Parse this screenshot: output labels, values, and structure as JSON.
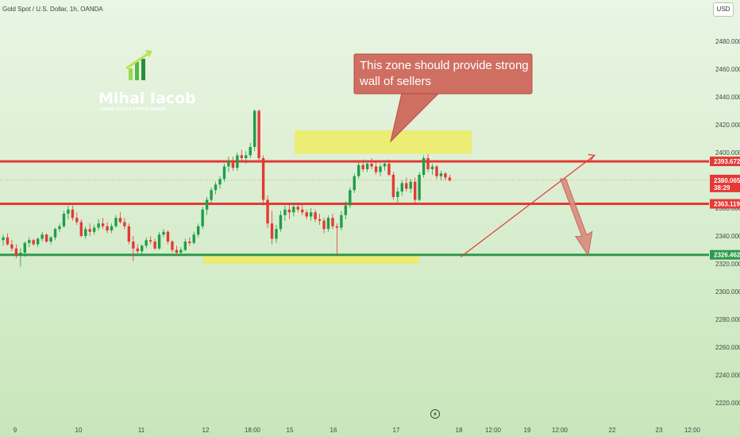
{
  "header": {
    "symbol": "Gold Spot / U.S. Dollar, 1h, OANDA",
    "currency_button": "USD"
  },
  "brand": {
    "name": "Mihai Iacob",
    "tagline": "FOREX, GOLD & CRYPTO TRADER"
  },
  "annotation": {
    "line1": "This zone should provide strong",
    "line2": "wall of sellers"
  },
  "colors": {
    "background_top": "#eaf5e4",
    "background_bottom": "#c8e6bb",
    "bull": "#1e9e4a",
    "bear": "#e53935",
    "resistance": "#e53935",
    "support": "#2e9a4c",
    "zone": "#ecec6a",
    "callout": "#cf6f62"
  },
  "chart_data": {
    "type": "candlestick",
    "title": "Gold Spot / U.S. Dollar, 1h, OANDA",
    "ylim": [
      2212,
      2502
    ],
    "y_ticks": [
      "2220.000",
      "2240.000",
      "2260.000",
      "2280.000",
      "2300.000",
      "2320.000",
      "2340.000",
      "2360.000",
      "2380.000",
      "2400.000",
      "2420.000",
      "2440.000",
      "2460.000",
      "2480.000"
    ],
    "x_ticks": [
      "9",
      "10",
      "11",
      "12",
      "18:00",
      "15",
      "16",
      "17",
      "18",
      "12:00",
      "19",
      "12:00",
      "22",
      "23",
      "12:00"
    ],
    "levels": [
      {
        "name": "resistance-upper",
        "price": 2393.672,
        "label": "2393.672",
        "color": "#e53935"
      },
      {
        "name": "resistance-lower",
        "price": 2363.119,
        "label": "2363.119",
        "color": "#e53935"
      },
      {
        "name": "support",
        "price": 2326.462,
        "label": "2326.462",
        "color": "#2e9a4c"
      }
    ],
    "last_price": {
      "price": 2380.065,
      "label": "2380.065",
      "countdown": "38:29"
    },
    "zones": [
      {
        "name": "sellers-zone",
        "from": "May 15 ~02:00",
        "to": "May 18 ~12:00",
        "low": 2399,
        "high": 2416
      },
      {
        "name": "buyers-zone",
        "from": "May 12 ~00:00",
        "to": "May 17 ~16:00",
        "low": 2320,
        "high": 2327
      }
    ],
    "trendline": {
      "from": [
        16,
        2325
      ],
      "to": [
        18.1,
        2398
      ]
    },
    "projection_arrow": {
      "from": [
        17.6,
        2381
      ],
      "to": [
        18.0,
        2326
      ]
    },
    "candles": [
      [
        2337,
        2341,
        2333,
        2339
      ],
      [
        2339,
        2342,
        2333,
        2334
      ],
      [
        2334,
        2337,
        2329,
        2331
      ],
      [
        2331,
        2334,
        2324,
        2326
      ],
      [
        2326,
        2331,
        2318,
        2328
      ],
      [
        2328,
        2336,
        2325,
        2335
      ],
      [
        2335,
        2339,
        2332,
        2337
      ],
      [
        2337,
        2338,
        2333,
        2334
      ],
      [
        2334,
        2339,
        2332,
        2338
      ],
      [
        2338,
        2343,
        2336,
        2341
      ],
      [
        2341,
        2342,
        2335,
        2336
      ],
      [
        2336,
        2340,
        2334,
        2339
      ],
      [
        2339,
        2346,
        2337,
        2345
      ],
      [
        2345,
        2349,
        2343,
        2347
      ],
      [
        2347,
        2358,
        2346,
        2356
      ],
      [
        2356,
        2362,
        2352,
        2359
      ],
      [
        2359,
        2362,
        2351,
        2353
      ],
      [
        2353,
        2357,
        2348,
        2350
      ],
      [
        2350,
        2352,
        2339,
        2340
      ],
      [
        2340,
        2347,
        2338,
        2345
      ],
      [
        2345,
        2349,
        2340,
        2343
      ],
      [
        2343,
        2348,
        2341,
        2346
      ],
      [
        2346,
        2352,
        2344,
        2349
      ],
      [
        2349,
        2353,
        2345,
        2347
      ],
      [
        2347,
        2350,
        2342,
        2344
      ],
      [
        2344,
        2349,
        2342,
        2347
      ],
      [
        2347,
        2355,
        2346,
        2353
      ],
      [
        2353,
        2357,
        2349,
        2350
      ],
      [
        2350,
        2353,
        2345,
        2347
      ],
      [
        2347,
        2349,
        2334,
        2336
      ],
      [
        2336,
        2340,
        2322,
        2331
      ],
      [
        2331,
        2334,
        2327,
        2329
      ],
      [
        2329,
        2334,
        2327,
        2333
      ],
      [
        2333,
        2339,
        2331,
        2337
      ],
      [
        2337,
        2340,
        2334,
        2336
      ],
      [
        2336,
        2338,
        2330,
        2331
      ],
      [
        2331,
        2343,
        2330,
        2341
      ],
      [
        2341,
        2345,
        2339,
        2343
      ],
      [
        2343,
        2344,
        2334,
        2336
      ],
      [
        2336,
        2337,
        2328,
        2330
      ],
      [
        2330,
        2333,
        2326,
        2328
      ],
      [
        2328,
        2332,
        2326,
        2330
      ],
      [
        2330,
        2338,
        2329,
        2336
      ],
      [
        2336,
        2339,
        2333,
        2335
      ],
      [
        2335,
        2343,
        2334,
        2341
      ],
      [
        2341,
        2349,
        2339,
        2347
      ],
      [
        2347,
        2361,
        2345,
        2359
      ],
      [
        2359,
        2368,
        2355,
        2366
      ],
      [
        2366,
        2375,
        2364,
        2373
      ],
      [
        2373,
        2379,
        2370,
        2377
      ],
      [
        2377,
        2383,
        2374,
        2381
      ],
      [
        2381,
        2392,
        2379,
        2390
      ],
      [
        2390,
        2397,
        2386,
        2394
      ],
      [
        2394,
        2397,
        2387,
        2389
      ],
      [
        2389,
        2400,
        2387,
        2398
      ],
      [
        2398,
        2402,
        2394,
        2396
      ],
      [
        2396,
        2401,
        2392,
        2398
      ],
      [
        2398,
        2407,
        2396,
        2404
      ],
      [
        2404,
        2431,
        2401,
        2430
      ],
      [
        2430,
        2431,
        2393,
        2396
      ],
      [
        2396,
        2398,
        2362,
        2366
      ],
      [
        2366,
        2369,
        2346,
        2349
      ],
      [
        2349,
        2358,
        2334,
        2338
      ],
      [
        2338,
        2348,
        2335,
        2345
      ],
      [
        2345,
        2358,
        2343,
        2355
      ],
      [
        2355,
        2362,
        2351,
        2359
      ],
      [
        2359,
        2364,
        2352,
        2357
      ],
      [
        2357,
        2363,
        2354,
        2361
      ],
      [
        2361,
        2364,
        2357,
        2359
      ],
      [
        2359,
        2363,
        2355,
        2357
      ],
      [
        2357,
        2359,
        2352,
        2354
      ],
      [
        2354,
        2360,
        2351,
        2357
      ],
      [
        2357,
        2359,
        2350,
        2352
      ],
      [
        2352,
        2356,
        2348,
        2351
      ],
      [
        2351,
        2353,
        2342,
        2345
      ],
      [
        2345,
        2355,
        2343,
        2353
      ],
      [
        2353,
        2356,
        2345,
        2347
      ],
      [
        2347,
        2349,
        2326,
        2346
      ],
      [
        2346,
        2358,
        2344,
        2355
      ],
      [
        2355,
        2365,
        2352,
        2362
      ],
      [
        2362,
        2375,
        2360,
        2373
      ],
      [
        2373,
        2385,
        2371,
        2383
      ],
      [
        2383,
        2393,
        2381,
        2391
      ],
      [
        2391,
        2395,
        2386,
        2388
      ],
      [
        2388,
        2394,
        2386,
        2392
      ],
      [
        2392,
        2396,
        2388,
        2390
      ],
      [
        2390,
        2394,
        2384,
        2386
      ],
      [
        2386,
        2392,
        2383,
        2390
      ],
      [
        2390,
        2394,
        2387,
        2392
      ],
      [
        2392,
        2395,
        2383,
        2384
      ],
      [
        2384,
        2386,
        2366,
        2368
      ],
      [
        2368,
        2375,
        2364,
        2372
      ],
      [
        2372,
        2380,
        2369,
        2378
      ],
      [
        2378,
        2382,
        2372,
        2374
      ],
      [
        2374,
        2381,
        2371,
        2379
      ],
      [
        2379,
        2382,
        2364,
        2366
      ],
      [
        2366,
        2386,
        2365,
        2384
      ],
      [
        2384,
        2398,
        2382,
        2396
      ],
      [
        2396,
        2399,
        2386,
        2388
      ],
      [
        2388,
        2392,
        2384,
        2390
      ],
      [
        2390,
        2391,
        2381,
        2383
      ],
      [
        2383,
        2387,
        2380,
        2385
      ],
      [
        2385,
        2386,
        2380,
        2382
      ],
      [
        2382,
        2384,
        2379,
        2380
      ]
    ]
  }
}
